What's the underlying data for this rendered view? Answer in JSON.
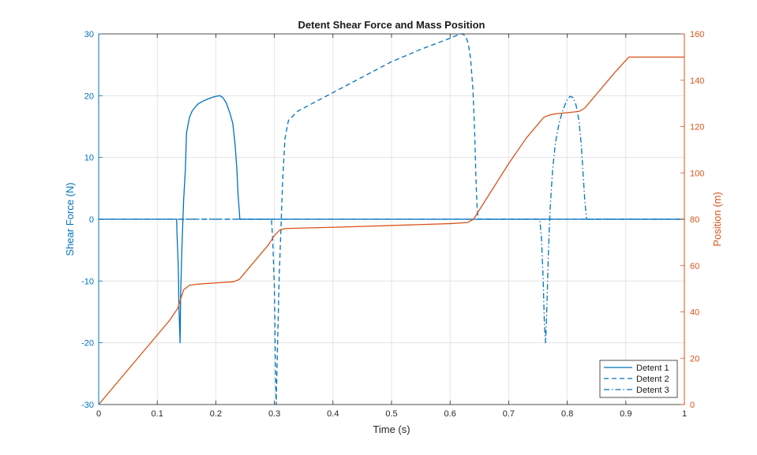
{
  "chart_data": {
    "type": "line",
    "title": "Detent Shear Force and Mass Position",
    "xlabel": "Time (s)",
    "ylabel_left": "Shear Force (N)",
    "ylabel_right": "Position (m)",
    "xlim": [
      0,
      1
    ],
    "ylim_left": [
      -30,
      30
    ],
    "ylim_right": [
      0,
      160
    ],
    "xticks": [
      0,
      0.1,
      0.2,
      0.3,
      0.4,
      0.5,
      0.6,
      0.7,
      0.8,
      0.9,
      1
    ],
    "xtick_labels": [
      "0",
      "0.1",
      "0.2",
      "0.3",
      "0.4",
      "0.5",
      "0.6",
      "0.7",
      "0.8",
      "0.9",
      "1"
    ],
    "yticks_left": [
      -30,
      -20,
      -10,
      0,
      10,
      20,
      30
    ],
    "ytick_labels_left": [
      "-30",
      "-20",
      "-10",
      "0",
      "10",
      "20",
      "30"
    ],
    "yticks_right": [
      0,
      20,
      40,
      60,
      80,
      100,
      120,
      140,
      160
    ],
    "ytick_labels_right": [
      "0",
      "20",
      "40",
      "60",
      "80",
      "100",
      "120",
      "140",
      "160"
    ],
    "grid": true,
    "legend_position": "bottom-right",
    "colors": {
      "left_axis": "#0072bd",
      "right_axis": "#d95319",
      "text": "#262626",
      "grid": "#dfdfdf"
    },
    "series": [
      {
        "name": "Detent 1",
        "axis": "left",
        "style": "solid",
        "x": [
          0,
          0.133,
          0.134,
          0.136,
          0.137,
          0.139,
          0.14,
          0.142,
          0.145,
          0.148,
          0.15,
          0.155,
          0.16,
          0.17,
          0.18,
          0.19,
          0.2,
          0.207,
          0.212,
          0.218,
          0.224,
          0.229,
          0.233,
          0.236,
          0.238,
          0.24,
          0.241,
          0.245,
          1.0
        ],
        "y": [
          0,
          0,
          -3,
          -8,
          -14,
          -20,
          -12,
          -5,
          3,
          8,
          14,
          16.5,
          17.6,
          18.7,
          19.2,
          19.6,
          19.9,
          20,
          19.7,
          18.8,
          17.2,
          15.5,
          12,
          8,
          4,
          1.5,
          0,
          0,
          0
        ]
      },
      {
        "name": "Detent 2",
        "axis": "left",
        "style": "dashed",
        "x": [
          0.135,
          0.245,
          0.295,
          0.297,
          0.3,
          0.302,
          0.303,
          0.305,
          0.308,
          0.311,
          0.314,
          0.318,
          0.324,
          0.34,
          0.4,
          0.45,
          0.5,
          0.55,
          0.6,
          0.617,
          0.622,
          0.627,
          0.631,
          0.635,
          0.639,
          0.642,
          0.644,
          0.646,
          0.648,
          0.65,
          1.0
        ],
        "y": [
          0,
          0,
          0,
          -3,
          -11,
          -25,
          -30,
          -22,
          -10,
          -2,
          6,
          13,
          16,
          17.5,
          20.5,
          23,
          25.5,
          27.5,
          29.3,
          30,
          30,
          29.5,
          28.5,
          26,
          21,
          14,
          7,
          2,
          0,
          0,
          0
        ]
      },
      {
        "name": "Detent 3",
        "axis": "left",
        "style": "dashdot",
        "x": [
          0,
          0.753,
          0.756,
          0.759,
          0.761,
          0.763,
          0.765,
          0.768,
          0.771,
          0.775,
          0.78,
          0.786,
          0.792,
          0.799,
          0.805,
          0.81,
          0.815,
          0.82,
          0.824,
          0.828,
          0.83,
          0.832,
          0.833,
          1.0
        ],
        "y": [
          0,
          0,
          -3,
          -10,
          -17,
          -20,
          -15,
          -5,
          2,
          8,
          12.5,
          15.5,
          17.5,
          19.2,
          19.9,
          19.7,
          18.5,
          16,
          12,
          6,
          3,
          1,
          0,
          0
        ]
      },
      {
        "name": "Position",
        "axis": "right",
        "style": "solid",
        "x": [
          0,
          0.02,
          0.04,
          0.06,
          0.08,
          0.1,
          0.12,
          0.135,
          0.145,
          0.155,
          0.17,
          0.2,
          0.23,
          0.24,
          0.25,
          0.27,
          0.29,
          0.3,
          0.31,
          0.32,
          0.35,
          0.4,
          0.45,
          0.5,
          0.55,
          0.6,
          0.63,
          0.64,
          0.65,
          0.67,
          0.7,
          0.73,
          0.76,
          0.77,
          0.78,
          0.8,
          0.82,
          0.83,
          0.85,
          0.88,
          0.905,
          0.92,
          1.0
        ],
        "y": [
          0,
          6,
          12,
          18,
          24,
          30,
          36,
          41.5,
          49.5,
          51.5,
          52,
          52.5,
          53,
          54,
          57,
          63,
          69,
          73,
          75.5,
          76,
          76.2,
          76.5,
          76.9,
          77.3,
          77.7,
          78.1,
          78.6,
          80,
          84,
          92,
          104,
          115,
          124,
          125,
          125.5,
          126,
          126.5,
          128,
          134,
          143,
          150,
          150,
          150
        ]
      }
    ]
  }
}
